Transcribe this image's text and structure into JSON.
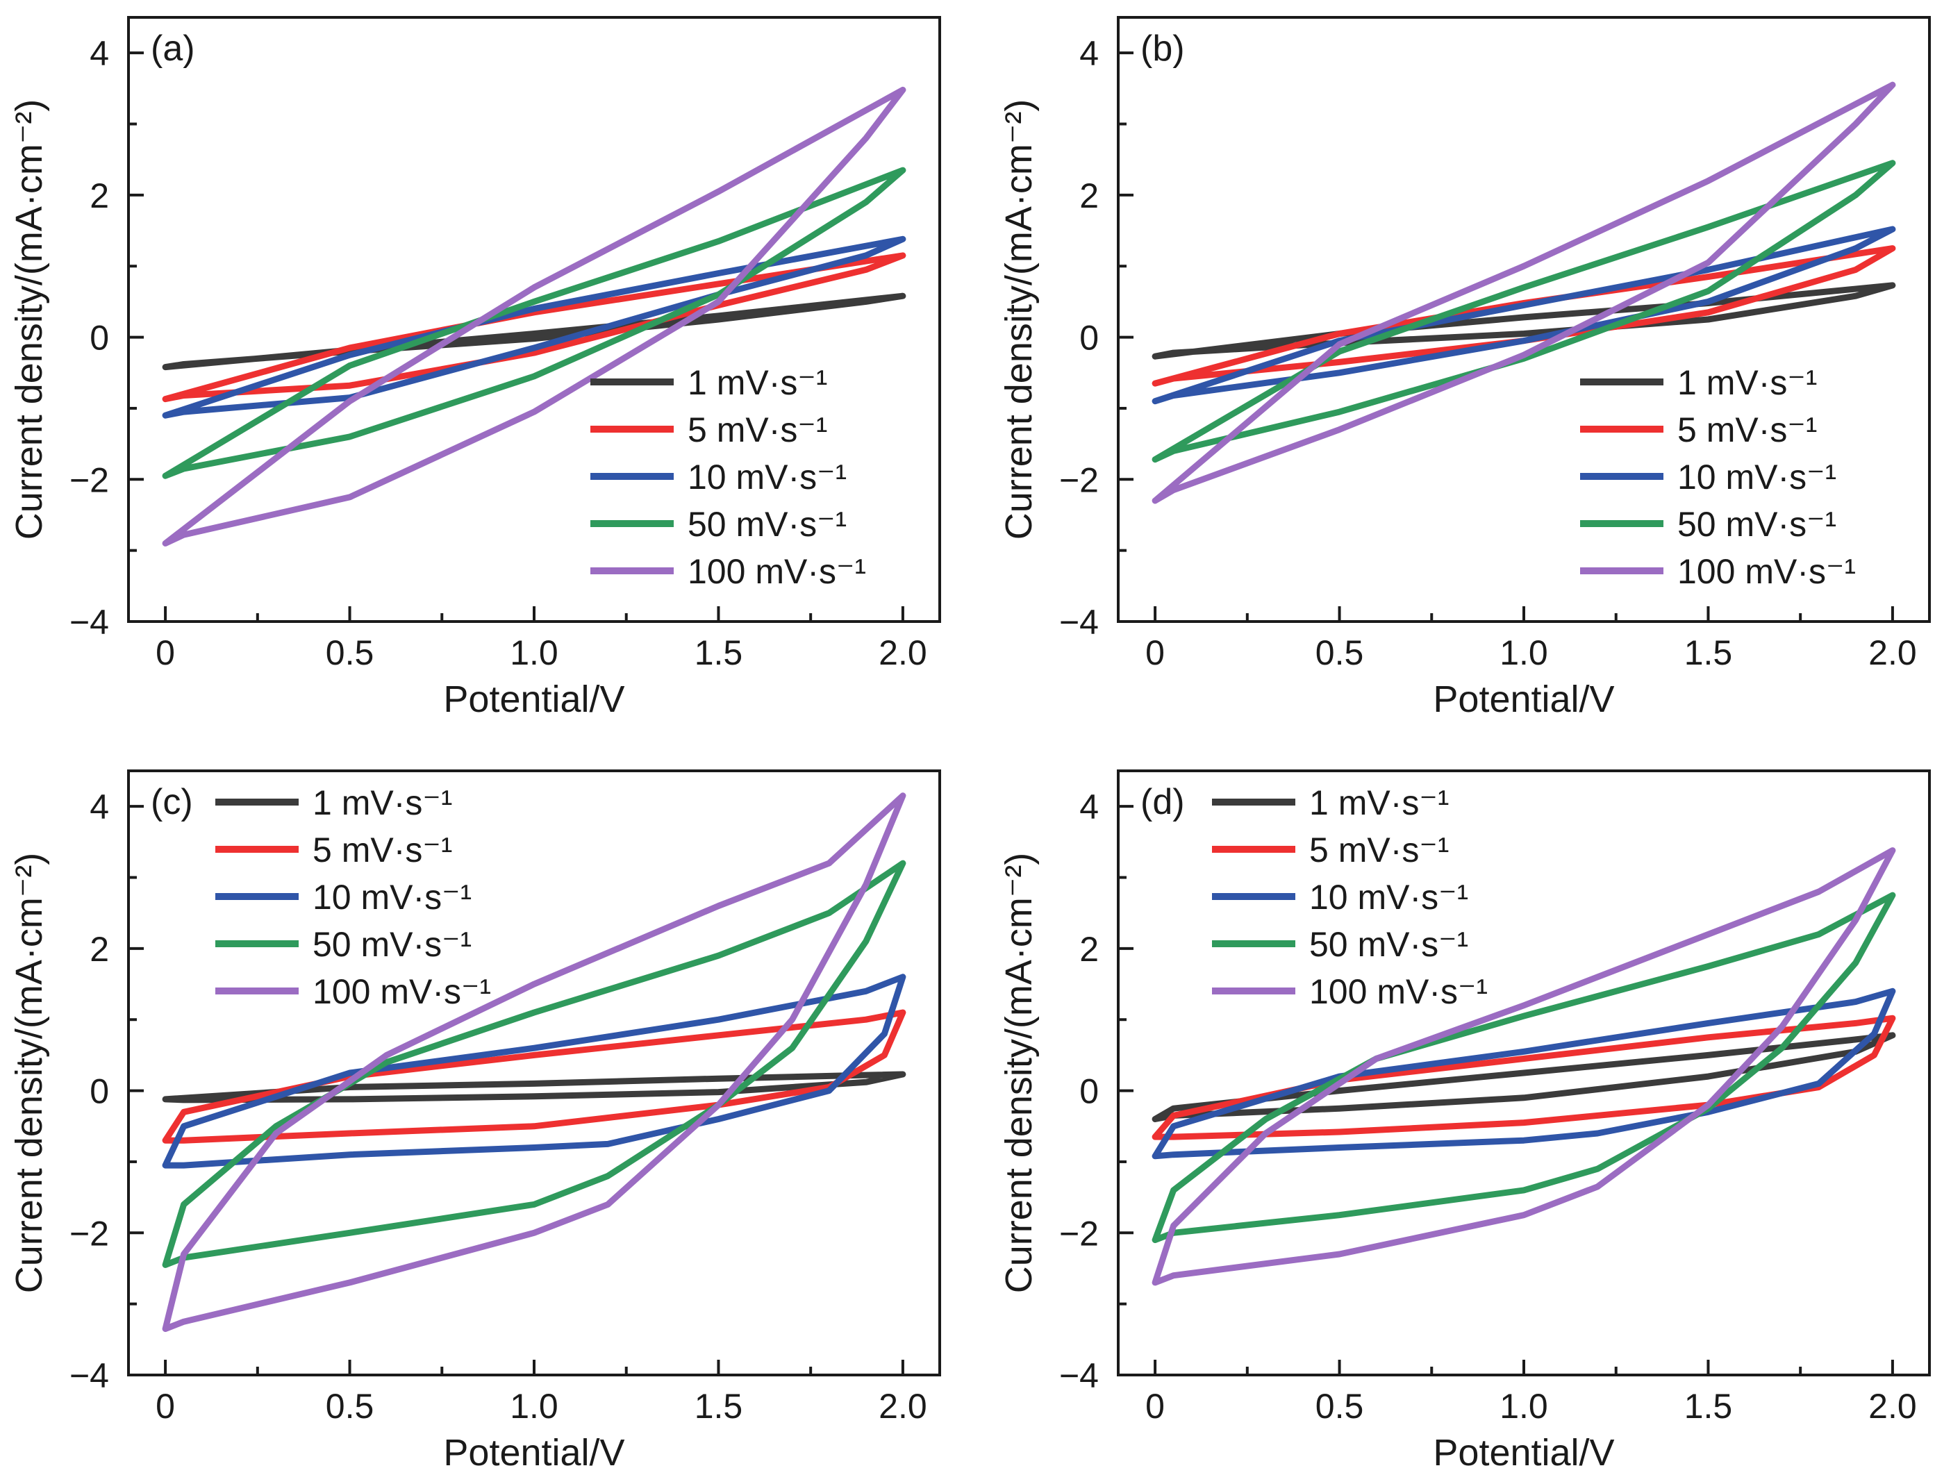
{
  "colors": {
    "1 mV·s⁻¹": "#3b3b3b",
    "5 mV·s⁻¹": "#ee3030",
    "10 mV·s⁻¹": "#2f55a8",
    "50 mV·s⁻¹": "#2f9a5c",
    "100 mV·s⁻¹": "#9b6cc2"
  },
  "chart_data": [
    {
      "type": "line",
      "panel_label": "(a)",
      "xlabel": "Potential/V",
      "ylabel": "Current density/(mA·cm⁻²)",
      "xlim": [
        -0.1,
        2.1
      ],
      "ylim": [
        -4,
        4.5
      ],
      "xticks": [
        0,
        0.5,
        1.0,
        1.5,
        2.0
      ],
      "xtick_labels": [
        "0",
        "0.5",
        "1.0",
        "1.5",
        "2.0"
      ],
      "yticks": [
        -4,
        -2,
        0,
        2,
        4
      ],
      "ytick_labels": [
        "−4",
        "−2",
        "0",
        "2",
        "4"
      ],
      "legend_position": "lower-right",
      "series": [
        {
          "name": "1 mV·s⁻¹",
          "x": [
            0,
            0.5,
            1.0,
            1.5,
            2.0,
            1.9,
            1.5,
            1.0,
            0.5,
            0.05,
            0
          ],
          "y": [
            -0.42,
            -0.18,
            0.05,
            0.3,
            0.58,
            0.5,
            0.25,
            -0.02,
            -0.2,
            -0.38,
            -0.42
          ]
        },
        {
          "name": "5 mV·s⁻¹",
          "x": [
            0,
            0.5,
            1.0,
            1.5,
            2.0,
            1.9,
            1.5,
            1.0,
            0.5,
            0.05,
            0
          ],
          "y": [
            -0.87,
            -0.15,
            0.35,
            0.75,
            1.15,
            0.95,
            0.45,
            -0.22,
            -0.68,
            -0.82,
            -0.87
          ]
        },
        {
          "name": "10 mV·s⁻¹",
          "x": [
            0,
            0.5,
            1.0,
            1.5,
            2.0,
            1.9,
            1.5,
            1.0,
            0.5,
            0.05,
            0
          ],
          "y": [
            -1.1,
            -0.25,
            0.4,
            0.9,
            1.38,
            1.15,
            0.6,
            -0.15,
            -0.85,
            -1.05,
            -1.1
          ]
        },
        {
          "name": "50 mV·s⁻¹",
          "x": [
            0,
            0.5,
            1.0,
            1.5,
            2.0,
            1.9,
            1.5,
            1.0,
            0.5,
            0.05,
            0
          ],
          "y": [
            -1.95,
            -0.4,
            0.5,
            1.35,
            2.35,
            1.9,
            0.6,
            -0.55,
            -1.4,
            -1.85,
            -1.95
          ]
        },
        {
          "name": "100 mV·s⁻¹",
          "x": [
            0,
            0.5,
            1.0,
            1.5,
            2.0,
            1.9,
            1.5,
            1.0,
            0.5,
            0.05,
            0
          ],
          "y": [
            -2.9,
            -0.9,
            0.7,
            2.05,
            3.48,
            2.8,
            0.5,
            -1.05,
            -2.25,
            -2.78,
            -2.9
          ]
        }
      ]
    },
    {
      "type": "line",
      "panel_label": "(b)",
      "xlabel": "Potential/V",
      "ylabel": "Current density/(mA·cm⁻²)",
      "xlim": [
        -0.1,
        2.1
      ],
      "ylim": [
        -4,
        4.5
      ],
      "xticks": [
        0,
        0.5,
        1.0,
        1.5,
        2.0
      ],
      "xtick_labels": [
        "0",
        "0.5",
        "1.0",
        "1.5",
        "2.0"
      ],
      "yticks": [
        -4,
        -2,
        0,
        2,
        4
      ],
      "ytick_labels": [
        "−4",
        "−2",
        "0",
        "2",
        "4"
      ],
      "legend_position": "lower-right",
      "series": [
        {
          "name": "1 mV·s⁻¹",
          "x": [
            0,
            0.5,
            1.0,
            1.5,
            2.0,
            1.9,
            1.5,
            1.0,
            0.5,
            0.05,
            0
          ],
          "y": [
            -0.27,
            0.05,
            0.28,
            0.48,
            0.73,
            0.58,
            0.25,
            0.05,
            -0.08,
            -0.22,
            -0.27
          ]
        },
        {
          "name": "5 mV·s⁻¹",
          "x": [
            0,
            0.5,
            1.0,
            1.5,
            2.0,
            1.9,
            1.5,
            1.0,
            0.5,
            0.05,
            0
          ],
          "y": [
            -0.65,
            0.05,
            0.48,
            0.85,
            1.25,
            0.95,
            0.35,
            -0.05,
            -0.35,
            -0.58,
            -0.65
          ]
        },
        {
          "name": "10 mV·s⁻¹",
          "x": [
            0,
            0.5,
            1.0,
            1.5,
            2.0,
            1.9,
            1.5,
            1.0,
            0.5,
            0.05,
            0
          ],
          "y": [
            -0.9,
            -0.05,
            0.45,
            0.95,
            1.52,
            1.25,
            0.5,
            -0.05,
            -0.5,
            -0.82,
            -0.9
          ]
        },
        {
          "name": "50 mV·s⁻¹",
          "x": [
            0,
            0.5,
            1.0,
            1.5,
            2.0,
            1.9,
            1.5,
            1.0,
            0.5,
            0.05,
            0
          ],
          "y": [
            -1.72,
            -0.2,
            0.7,
            1.55,
            2.45,
            2.0,
            0.65,
            -0.3,
            -1.05,
            -1.6,
            -1.72
          ]
        },
        {
          "name": "100 mV·s⁻¹",
          "x": [
            0,
            0.5,
            1.0,
            1.5,
            2.0,
            1.9,
            1.5,
            1.0,
            0.5,
            0.05,
            0
          ],
          "y": [
            -2.3,
            -0.1,
            1.0,
            2.2,
            3.55,
            3.0,
            1.05,
            -0.25,
            -1.3,
            -2.15,
            -2.3
          ]
        }
      ]
    },
    {
      "type": "line",
      "panel_label": "(c)",
      "xlabel": "Potential/V",
      "ylabel": "Current density/(mA·cm⁻²)",
      "xlim": [
        -0.1,
        2.1
      ],
      "ylim": [
        -4,
        4.5
      ],
      "xticks": [
        0,
        0.5,
        1.0,
        1.5,
        2.0
      ],
      "xtick_labels": [
        "0",
        "0.5",
        "1.0",
        "1.5",
        "2.0"
      ],
      "yticks": [
        -4,
        -2,
        0,
        2,
        4
      ],
      "ytick_labels": [
        "−4",
        "−2",
        "0",
        "2",
        "4"
      ],
      "legend_position": "top-left",
      "series": [
        {
          "name": "1 mV·s⁻¹",
          "x": [
            0,
            0.5,
            1.0,
            1.5,
            1.9,
            2.0,
            1.9,
            1.5,
            1.0,
            0.5,
            0.05,
            0
          ],
          "y": [
            -0.12,
            0.05,
            0.1,
            0.17,
            0.22,
            0.23,
            0.12,
            -0.02,
            -0.08,
            -0.12,
            -0.13,
            -0.12
          ]
        },
        {
          "name": "5 mV·s⁻¹",
          "x": [
            0,
            0.05,
            0.5,
            1.0,
            1.5,
            1.9,
            2.0,
            1.95,
            1.8,
            1.5,
            1.0,
            0.5,
            0.05,
            0
          ],
          "y": [
            -0.7,
            -0.3,
            0.2,
            0.5,
            0.78,
            1.0,
            1.1,
            0.5,
            0.05,
            -0.2,
            -0.5,
            -0.6,
            -0.7,
            -0.7
          ]
        },
        {
          "name": "10 mV·s⁻¹",
          "x": [
            0,
            0.05,
            0.5,
            1.0,
            1.5,
            1.9,
            2.0,
            1.95,
            1.8,
            1.5,
            1.2,
            1.0,
            0.5,
            0.05,
            0
          ],
          "y": [
            -1.05,
            -0.5,
            0.25,
            0.6,
            1.0,
            1.4,
            1.6,
            0.8,
            0.0,
            -0.4,
            -0.75,
            -0.8,
            -0.9,
            -1.05,
            -1.05
          ]
        },
        {
          "name": "50 mV·s⁻¹",
          "x": [
            0,
            0.05,
            0.3,
            0.6,
            1.0,
            1.5,
            1.8,
            2.0,
            1.9,
            1.7,
            1.5,
            1.2,
            1.0,
            0.5,
            0.05,
            0
          ],
          "y": [
            -2.45,
            -1.6,
            -0.5,
            0.4,
            1.1,
            1.9,
            2.5,
            3.2,
            2.1,
            0.6,
            -0.2,
            -1.2,
            -1.6,
            -2.0,
            -2.35,
            -2.45
          ]
        },
        {
          "name": "100 mV·s⁻¹",
          "x": [
            0,
            0.05,
            0.3,
            0.6,
            1.0,
            1.5,
            1.8,
            2.0,
            1.9,
            1.7,
            1.5,
            1.2,
            1.0,
            0.5,
            0.05,
            0
          ],
          "y": [
            -3.35,
            -2.3,
            -0.6,
            0.5,
            1.5,
            2.6,
            3.2,
            4.15,
            2.9,
            1.0,
            -0.2,
            -1.6,
            -2.0,
            -2.7,
            -3.25,
            -3.35
          ]
        }
      ]
    },
    {
      "type": "line",
      "panel_label": "(d)",
      "xlabel": "Potential/V",
      "ylabel": "Current density/(mA·cm⁻²)",
      "xlim": [
        -0.1,
        2.1
      ],
      "ylim": [
        -4,
        4.5
      ],
      "xticks": [
        0,
        0.5,
        1.0,
        1.5,
        2.0
      ],
      "xtick_labels": [
        "0",
        "0.5",
        "1.0",
        "1.5",
        "2.0"
      ],
      "yticks": [
        -4,
        -2,
        0,
        2,
        4
      ],
      "ytick_labels": [
        "−4",
        "−2",
        "0",
        "2",
        "4"
      ],
      "legend_position": "top-left",
      "series": [
        {
          "name": "1 mV·s⁻¹",
          "x": [
            0,
            0.05,
            0.5,
            1.0,
            1.5,
            1.9,
            2.0,
            1.9,
            1.5,
            1.0,
            0.5,
            0.05,
            0
          ],
          "y": [
            -0.4,
            -0.25,
            0.0,
            0.25,
            0.5,
            0.72,
            0.78,
            0.55,
            0.2,
            -0.1,
            -0.25,
            -0.35,
            -0.4
          ]
        },
        {
          "name": "5 mV·s⁻¹",
          "x": [
            0,
            0.05,
            0.5,
            1.0,
            1.5,
            1.9,
            2.0,
            1.95,
            1.8,
            1.5,
            1.0,
            0.5,
            0.05,
            0
          ],
          "y": [
            -0.65,
            -0.35,
            0.15,
            0.45,
            0.75,
            0.95,
            1.02,
            0.5,
            0.05,
            -0.2,
            -0.45,
            -0.58,
            -0.65,
            -0.65
          ]
        },
        {
          "name": "10 mV·s⁻¹",
          "x": [
            0,
            0.05,
            0.5,
            1.0,
            1.5,
            1.9,
            2.0,
            1.95,
            1.8,
            1.5,
            1.2,
            1.0,
            0.5,
            0.05,
            0
          ],
          "y": [
            -0.92,
            -0.5,
            0.2,
            0.55,
            0.95,
            1.25,
            1.4,
            0.8,
            0.1,
            -0.3,
            -0.6,
            -0.7,
            -0.8,
            -0.9,
            -0.92
          ]
        },
        {
          "name": "50 mV·s⁻¹",
          "x": [
            0,
            0.05,
            0.3,
            0.6,
            1.0,
            1.5,
            1.8,
            2.0,
            1.9,
            1.7,
            1.5,
            1.2,
            1.0,
            0.5,
            0.05,
            0
          ],
          "y": [
            -2.1,
            -1.4,
            -0.4,
            0.45,
            1.05,
            1.75,
            2.2,
            2.75,
            1.8,
            0.6,
            -0.25,
            -1.1,
            -1.4,
            -1.75,
            -2.0,
            -2.1
          ]
        },
        {
          "name": "100 mV·s⁻¹",
          "x": [
            0,
            0.05,
            0.3,
            0.6,
            1.0,
            1.5,
            1.8,
            2.0,
            1.9,
            1.7,
            1.5,
            1.2,
            1.0,
            0.5,
            0.05,
            0
          ],
          "y": [
            -2.7,
            -1.9,
            -0.6,
            0.45,
            1.2,
            2.2,
            2.8,
            3.38,
            2.4,
            0.9,
            -0.2,
            -1.35,
            -1.75,
            -2.3,
            -2.6,
            -2.7
          ]
        }
      ]
    }
  ]
}
